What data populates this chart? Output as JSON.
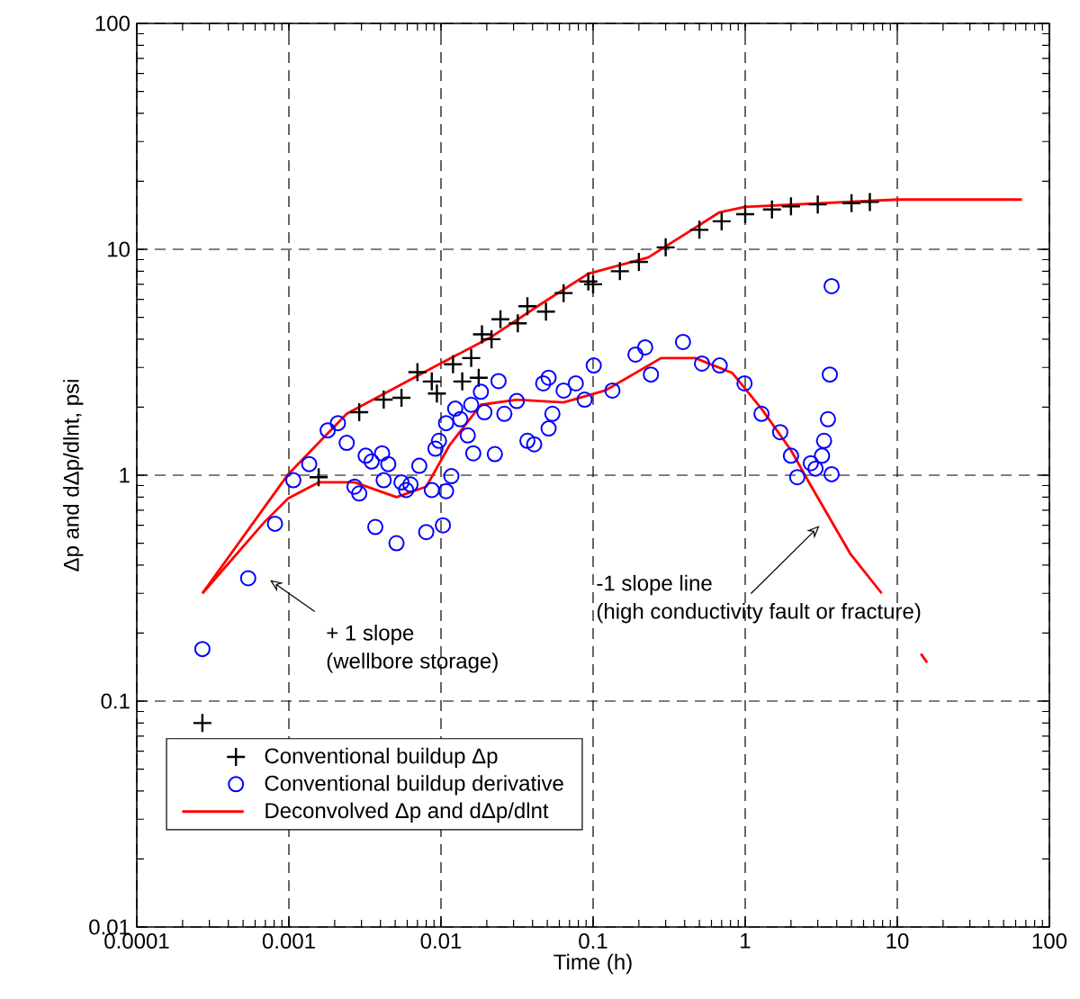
{
  "chart_data": {
    "type": "scatter",
    "xlabel": "Time  (h)",
    "ylabel": "Δp and dΔp/dlnt, psi",
    "log": "xy",
    "grid": true,
    "legend": "bottom left",
    "xlim": [
      0.0001,
      100
    ],
    "ylim": [
      0.01,
      100
    ],
    "xticks": [
      0.0001,
      0.001,
      0.01,
      0.1,
      1,
      10,
      100
    ],
    "yticks": [
      0.01,
      0.1,
      1,
      10,
      100
    ],
    "series": [
      {
        "name": "Conventional buildup Δp",
        "type": "scatter",
        "marker": "cross",
        "color": "#000000",
        "x": [
          0.00027,
          0.00157,
          0.0029,
          0.0042,
          0.0055,
          0.007,
          0.0087,
          0.0094,
          0.012,
          0.0138,
          0.0158,
          0.0177,
          0.0186,
          0.0215,
          0.0246,
          0.032,
          0.037,
          0.049,
          0.064,
          0.093,
          0.1,
          0.15,
          0.2,
          0.3,
          0.5,
          0.7,
          1,
          1.5,
          2,
          3,
          5,
          6.6
        ],
        "values": [
          0.08,
          0.98,
          1.9,
          2.16,
          2.2,
          2.86,
          2.6,
          2.3,
          3.1,
          2.6,
          3.3,
          2.7,
          4.2,
          4.0,
          4.9,
          4.7,
          5.6,
          5.3,
          6.4,
          7.2,
          7.0,
          8.0,
          8.8,
          10.2,
          12.2,
          13.3,
          14.3,
          15.0,
          15.5,
          15.8,
          16.0,
          16.2
        ]
      },
      {
        "name": "Conventional buildup derivative",
        "type": "scatter",
        "marker": "circle",
        "color": "#0000ff",
        "x": [
          0.00027,
          0.00054,
          0.00081,
          0.00107,
          0.00136,
          0.0018,
          0.0021,
          0.0024,
          0.0027,
          0.0029,
          0.0032,
          0.0035,
          0.0037,
          0.0041,
          0.0042,
          0.0045,
          0.0051,
          0.0055,
          0.0059,
          0.0063,
          0.0072,
          0.008,
          0.0087,
          0.0092,
          0.0097,
          0.0103,
          0.0108,
          0.0117,
          0.0108,
          0.0124,
          0.0134,
          0.015,
          0.0158,
          0.0163,
          0.0183,
          0.0193,
          0.0226,
          0.0239,
          0.0261,
          0.0315,
          0.037,
          0.041,
          0.047,
          0.051,
          0.054,
          0.064,
          0.077,
          0.088,
          0.101,
          0.051,
          0.134,
          0.19,
          0.22,
          0.24,
          0.39,
          0.52,
          0.68,
          0.99,
          1.28,
          1.7,
          2.0,
          2.2,
          2.7,
          2.9,
          3.2,
          3.3,
          3.5,
          3.6,
          3.7,
          3.7
        ],
        "values": [
          0.17,
          0.35,
          0.61,
          0.95,
          1.12,
          1.58,
          1.7,
          1.39,
          0.89,
          0.83,
          1.22,
          1.15,
          0.59,
          1.25,
          0.95,
          1.12,
          0.5,
          0.93,
          0.86,
          0.91,
          1.1,
          0.56,
          0.86,
          1.31,
          1.42,
          0.6,
          0.85,
          0.99,
          1.7,
          1.97,
          1.77,
          1.5,
          2.05,
          1.25,
          2.34,
          1.9,
          1.24,
          2.61,
          1.87,
          2.13,
          1.42,
          1.37,
          2.55,
          2.7,
          1.87,
          2.37,
          2.55,
          2.16,
          3.06,
          1.61,
          2.37,
          3.42,
          3.68,
          2.79,
          3.89,
          3.12,
          3.06,
          2.55,
          1.87,
          1.55,
          1.22,
          0.98,
          1.13,
          1.07,
          1.22,
          1.42,
          1.77,
          2.79,
          6.87,
          1.01
        ]
      },
      {
        "name": "Deconvolved Δp and dΔp/dlnt",
        "type": "line",
        "marker": "none",
        "color": "#ff0000",
        "x": [
          0.00027,
          0.00099,
          0.0024,
          0.0094,
          0.0215,
          0.045,
          0.093,
          0.23,
          0.68,
          1,
          10,
          66
        ],
        "values": [
          0.3,
          1.01,
          1.87,
          3.06,
          4.1,
          5.7,
          7.8,
          9.2,
          14.6,
          15.4,
          16.6,
          16.6
        ]
      },
      {
        "type": "line",
        "marker": "none",
        "color": "#ff0000",
        "x": [
          0.00027,
          0.00069,
          0.00099,
          0.00157,
          0.0027,
          0.0051,
          0.008,
          0.0114,
          0.0183,
          0.0315,
          0.064,
          0.12,
          0.28,
          0.47,
          0.82,
          1.28,
          2.0,
          2.7,
          4.9,
          7.9
        ],
        "values": [
          0.3,
          0.62,
          0.79,
          0.93,
          0.93,
          0.8,
          0.89,
          1.36,
          2.05,
          2.16,
          2.1,
          2.37,
          3.3,
          3.3,
          2.84,
          1.97,
          1.29,
          0.9,
          0.45,
          0.3
        ]
      },
      {
        "type": "line",
        "marker": "none",
        "color": "#ff0000",
        "x": [
          14.3,
          15.7
        ],
        "values": [
          0.162,
          0.148
        ]
      }
    ],
    "annotations": [
      "+ 1 slope",
      "(wellbore storage)",
      "-1 slope line",
      "(high conductivity fault or fracture)"
    ]
  }
}
